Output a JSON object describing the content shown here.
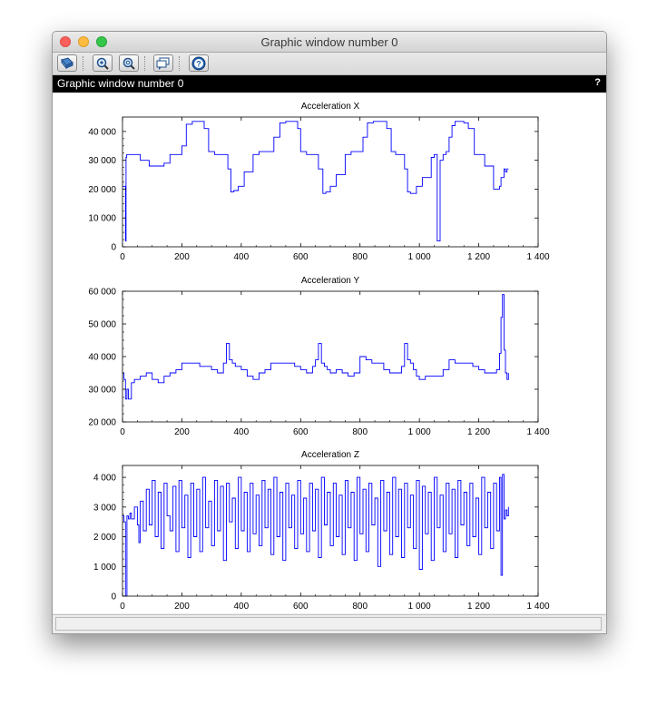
{
  "window": {
    "title": "Graphic window number 0",
    "figure_label": "Graphic window number 0",
    "help_glyph": "?"
  },
  "toolbar": {
    "icons": [
      "rotate-icon",
      "zoom-icon",
      "unzoom-icon",
      "datatip-icon",
      "help-icon"
    ]
  },
  "colors": {
    "series": "#0000ff",
    "axes": "#000000",
    "subtitle_bg": "#000000"
  },
  "chart_data": [
    {
      "type": "line",
      "title": "Acceleration X",
      "xlabel": "",
      "ylabel": "",
      "xlim": [
        0,
        1400
      ],
      "ylim": [
        0,
        45000
      ],
      "xticks": [
        0,
        200,
        400,
        600,
        800,
        1000,
        1200,
        1400
      ],
      "xtick_labels": [
        "0",
        "200",
        "400",
        "600",
        "800",
        "1 000",
        "1 200",
        "1 400"
      ],
      "yticks": [
        0,
        10000,
        20000,
        30000,
        40000
      ],
      "ytick_labels": [
        "0",
        "10 000",
        "20 000",
        "30 000",
        "40 000"
      ],
      "grid": false,
      "series": [
        {
          "color": "#0000ff",
          "x": [
            0,
            5,
            10,
            12,
            14,
            30,
            60,
            90,
            120,
            140,
            160,
            180,
            200,
            215,
            235,
            255,
            275,
            290,
            310,
            340,
            355,
            365,
            375,
            390,
            410,
            440,
            460,
            490,
            510,
            530,
            550,
            575,
            590,
            600,
            620,
            645,
            660,
            675,
            685,
            700,
            720,
            750,
            770,
            800,
            810,
            825,
            845,
            865,
            890,
            905,
            920,
            940,
            950,
            960,
            970,
            990,
            1010,
            1040,
            1050,
            1060,
            1070,
            1080,
            1085,
            1090,
            1100,
            1110,
            1120,
            1130,
            1150,
            1165,
            1185,
            1205,
            1220,
            1235,
            1250,
            1260,
            1265,
            1270,
            1275,
            1285,
            1290,
            1295,
            1300
          ],
          "y": [
            21000,
            21000,
            2000,
            31000,
            32000,
            32000,
            30000,
            28000,
            28000,
            29000,
            32000,
            32000,
            35000,
            42500,
            43500,
            43500,
            41000,
            33000,
            32000,
            32000,
            27000,
            19000,
            19500,
            21000,
            26000,
            32000,
            33000,
            33000,
            38000,
            43000,
            43500,
            43500,
            41000,
            33000,
            32000,
            32000,
            27000,
            18500,
            19000,
            21000,
            25000,
            32000,
            33000,
            33000,
            38000,
            43000,
            43500,
            43500,
            41000,
            33000,
            32000,
            32000,
            27000,
            19000,
            18500,
            21000,
            24000,
            31000,
            32000,
            2000,
            30000,
            32000,
            32000,
            33000,
            38000,
            42000,
            43500,
            43500,
            43000,
            41000,
            32000,
            32000,
            28000,
            28000,
            20000,
            20000,
            20000,
            21000,
            24000,
            27000,
            26000,
            27000,
            27000
          ]
        }
      ]
    },
    {
      "type": "line",
      "title": "Acceleration Y",
      "xlabel": "",
      "ylabel": "",
      "xlim": [
        0,
        1400
      ],
      "ylim": [
        20000,
        60000
      ],
      "xticks": [
        0,
        200,
        400,
        600,
        800,
        1000,
        1200,
        1400
      ],
      "xtick_labels": [
        "0",
        "200",
        "400",
        "600",
        "800",
        "1 000",
        "1 200",
        "1 400"
      ],
      "yticks": [
        20000,
        30000,
        40000,
        50000,
        60000
      ],
      "ytick_labels": [
        "20 000",
        "30 000",
        "40 000",
        "50 000",
        "60 000"
      ],
      "grid": false,
      "series": [
        {
          "color": "#0000ff",
          "x": [
            0,
            5,
            10,
            15,
            20,
            30,
            40,
            60,
            80,
            100,
            120,
            140,
            160,
            180,
            200,
            220,
            240,
            260,
            280,
            300,
            320,
            340,
            350,
            360,
            370,
            380,
            390,
            400,
            420,
            440,
            460,
            480,
            500,
            520,
            540,
            560,
            580,
            600,
            620,
            640,
            650,
            660,
            670,
            680,
            690,
            700,
            720,
            740,
            760,
            780,
            800,
            820,
            840,
            860,
            880,
            900,
            920,
            940,
            950,
            960,
            970,
            980,
            990,
            1000,
            1020,
            1040,
            1060,
            1080,
            1100,
            1120,
            1140,
            1160,
            1180,
            1200,
            1220,
            1240,
            1260,
            1270,
            1275,
            1280,
            1285,
            1290,
            1295,
            1300
          ],
          "y": [
            35000,
            33000,
            27000,
            30000,
            27000,
            32000,
            33000,
            34000,
            35000,
            33000,
            32000,
            34000,
            35000,
            36000,
            38000,
            38000,
            38000,
            37000,
            37000,
            36000,
            35000,
            38000,
            44000,
            39000,
            38000,
            37000,
            37000,
            36000,
            34000,
            33000,
            35000,
            36000,
            38000,
            38000,
            38000,
            38000,
            37000,
            36000,
            35000,
            37000,
            39000,
            44000,
            38000,
            37000,
            36000,
            35000,
            36000,
            35000,
            34000,
            35000,
            40000,
            39000,
            38000,
            38000,
            36000,
            35000,
            35000,
            37000,
            44000,
            39000,
            38000,
            36000,
            34000,
            33000,
            34000,
            34000,
            34000,
            36000,
            39000,
            38000,
            38000,
            38000,
            37000,
            36000,
            35000,
            35000,
            36000,
            41000,
            52000,
            59000,
            42000,
            35000,
            33000,
            35000
          ]
        }
      ]
    },
    {
      "type": "line",
      "title": "Acceleration Z",
      "xlabel": "",
      "ylabel": "",
      "xlim": [
        0,
        1400
      ],
      "ylim": [
        0,
        4400
      ],
      "xticks": [
        0,
        200,
        400,
        600,
        800,
        1000,
        1200,
        1400
      ],
      "xtick_labels": [
        "0",
        "200",
        "400",
        "600",
        "800",
        "1 000",
        "1 200",
        "1 400"
      ],
      "yticks": [
        0,
        1000,
        2000,
        3000,
        4000
      ],
      "ytick_labels": [
        "0",
        "1 000",
        "2 000",
        "3 000",
        "4 000"
      ],
      "grid": false,
      "series": [
        {
          "color": "#0000ff",
          "x": [
            0,
            5,
            10,
            15,
            20,
            25,
            30,
            40,
            50,
            55,
            60,
            70,
            80,
            90,
            100,
            110,
            120,
            130,
            140,
            150,
            160,
            170,
            180,
            190,
            200,
            210,
            220,
            230,
            240,
            250,
            260,
            270,
            280,
            290,
            300,
            310,
            320,
            330,
            340,
            350,
            360,
            370,
            380,
            390,
            400,
            410,
            420,
            430,
            440,
            450,
            460,
            470,
            480,
            490,
            500,
            510,
            520,
            530,
            540,
            550,
            560,
            570,
            580,
            590,
            600,
            610,
            620,
            630,
            640,
            650,
            660,
            670,
            680,
            690,
            700,
            710,
            720,
            730,
            740,
            750,
            760,
            770,
            780,
            790,
            800,
            810,
            820,
            830,
            840,
            850,
            860,
            870,
            880,
            890,
            900,
            910,
            920,
            930,
            940,
            950,
            960,
            970,
            980,
            990,
            1000,
            1010,
            1020,
            1030,
            1040,
            1050,
            1060,
            1070,
            1080,
            1090,
            1100,
            1110,
            1120,
            1130,
            1140,
            1150,
            1160,
            1170,
            1180,
            1190,
            1200,
            1210,
            1220,
            1230,
            1240,
            1250,
            1260,
            1270,
            1275,
            1280,
            1285,
            1290,
            1295,
            1300
          ],
          "y": [
            2700,
            2500,
            0,
            2700,
            2600,
            2800,
            2600,
            3000,
            2400,
            1800,
            3200,
            2200,
            3600,
            2400,
            3900,
            2000,
            3500,
            1600,
            3800,
            2700,
            2200,
            3700,
            1500,
            3900,
            2300,
            3400,
            1300,
            3800,
            2000,
            3600,
            1500,
            4000,
            2300,
            3200,
            1700,
            3900,
            2200,
            3700,
            1200,
            3800,
            2500,
            3300,
            1600,
            4000,
            2200,
            3500,
            1500,
            3800,
            2100,
            3400,
            1700,
            3900,
            2300,
            3600,
            1400,
            4000,
            2000,
            3500,
            1200,
            3800,
            2300,
            3400,
            1600,
            3900,
            2100,
            3300,
            1500,
            3800,
            2200,
            3600,
            1300,
            4000,
            2400,
            3500,
            1700,
            3800,
            2000,
            3400,
            1400,
            3900,
            2300,
            3500,
            1200,
            4000,
            2100,
            3600,
            1500,
            3800,
            2400,
            3300,
            1000,
            3900,
            2200,
            3500,
            1400,
            4000,
            2000,
            3600,
            1300,
            3800,
            2300,
            3400,
            1600,
            3900,
            900,
            3700,
            2100,
            3500,
            1200,
            4000,
            2300,
            3400,
            1500,
            3800,
            2100,
            3600,
            1300,
            3900,
            2400,
            3500,
            1700,
            3800,
            2000,
            3300,
            1400,
            4000,
            2300,
            3500,
            1600,
            3800,
            2200,
            4000,
            700,
            4100,
            2600,
            2900,
            2700,
            3000
          ]
        }
      ]
    }
  ]
}
